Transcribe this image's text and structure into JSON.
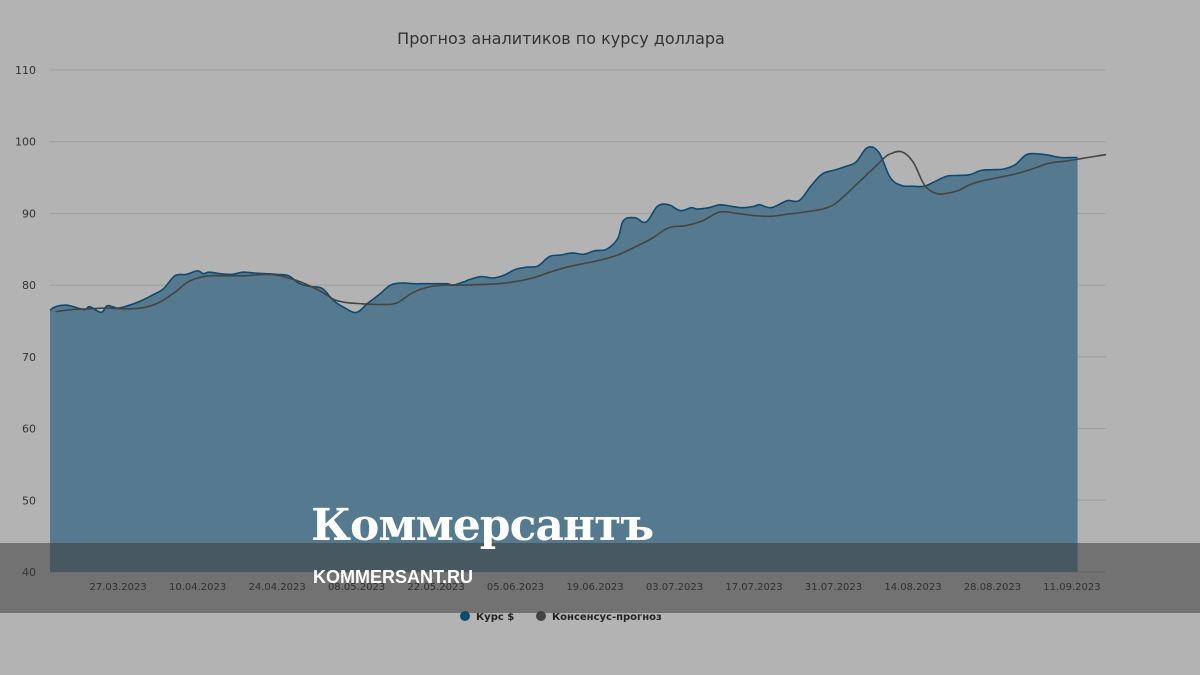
{
  "chart_data": {
    "type": "area",
    "title": "Прогноз аналитиков по курсу доллара",
    "ylim": [
      40,
      110
    ],
    "yticks": [
      40,
      50,
      60,
      70,
      80,
      90,
      100,
      110
    ],
    "grid": true,
    "legend_position": "bottom-center",
    "x_tick_labels": [
      "27.03.2023",
      "10.04.2023",
      "24.04.2023",
      "08.05.2023",
      "22.05.2023",
      "05.06.2023",
      "19.06.2023",
      "03.07.2023",
      "17.07.2023",
      "31.07.2023",
      "14.08.2023",
      "28.08.2023",
      "11.09.2023"
    ],
    "x_range_days": [
      -12,
      174
    ],
    "series": [
      {
        "name": "Курс $",
        "type": "area",
        "color": "#0d4a70",
        "fill": "#557a8f",
        "x": [
          -12,
          -11,
          -9,
          -6,
          -5,
          -3,
          -2,
          -1,
          0,
          2,
          4,
          6,
          8,
          10,
          12,
          14,
          15,
          16,
          18,
          20,
          22,
          24,
          26,
          28,
          30,
          32,
          34,
          36,
          38,
          40,
          42,
          44,
          46,
          48,
          50,
          52,
          54,
          56,
          58,
          59,
          61,
          62,
          64,
          66,
          68,
          70,
          72,
          74,
          76,
          78,
          80,
          82,
          84,
          86,
          88,
          89,
          91,
          93,
          95,
          97,
          99,
          101,
          102,
          104,
          106,
          108,
          110,
          112,
          113,
          115,
          117,
          118,
          120,
          122,
          124,
          126,
          128,
          130,
          132,
          134,
          136,
          138,
          140,
          142,
          144,
          146,
          148,
          150,
          152,
          154,
          156,
          158,
          160,
          162,
          164,
          166,
          168,
          169
        ],
        "values": [
          76.5,
          77.0,
          77.2,
          76.6,
          77.0,
          76.2,
          77.1,
          77.0,
          76.8,
          77.2,
          77.8,
          78.6,
          79.5,
          81.3,
          81.5,
          82.0,
          81.6,
          81.8,
          81.6,
          81.5,
          81.8,
          81.7,
          81.6,
          81.5,
          81.3,
          80.2,
          79.8,
          79.5,
          77.8,
          76.8,
          76.2,
          77.5,
          78.7,
          80.0,
          80.3,
          80.2,
          80.2,
          80.2,
          80.2,
          80.0,
          80.5,
          80.8,
          81.2,
          81.0,
          81.4,
          82.2,
          82.5,
          82.7,
          84.0,
          84.2,
          84.5,
          84.3,
          84.8,
          85.0,
          86.5,
          89.0,
          89.4,
          88.8,
          91.0,
          91.2,
          90.4,
          90.8,
          90.6,
          90.8,
          91.2,
          91.0,
          90.8,
          91.0,
          91.2,
          90.8,
          91.5,
          91.8,
          91.8,
          93.8,
          95.5,
          96.0,
          96.5,
          97.2,
          99.2,
          98.5,
          95.0,
          93.9,
          93.8,
          93.8,
          94.5,
          95.2,
          95.3,
          95.4,
          96.0,
          96.1,
          96.2,
          96.8,
          98.2,
          98.3,
          98.1,
          97.8,
          97.8,
          97.8
        ]
      },
      {
        "name": "Консенсус-прогноз",
        "type": "line",
        "color": "#444444",
        "x": [
          -11,
          -8,
          -5,
          -2,
          1,
          4,
          7,
          10,
          12,
          14,
          16,
          18,
          20,
          22,
          24,
          26,
          28,
          30,
          32,
          34,
          36,
          38,
          40,
          43,
          46,
          49,
          52,
          55,
          58,
          61,
          64,
          67,
          70,
          73,
          76,
          79,
          82,
          85,
          88,
          91,
          94,
          97,
          100,
          103,
          106,
          109,
          112,
          115,
          118,
          121,
          124,
          126,
          128,
          130,
          132,
          134,
          135,
          136,
          138,
          140,
          142,
          144,
          146,
          148,
          150,
          152,
          155,
          158,
          161,
          164,
          167,
          170,
          174
        ],
        "values": [
          76.3,
          76.6,
          76.7,
          76.8,
          76.7,
          76.8,
          77.5,
          79.0,
          80.3,
          81.0,
          81.3,
          81.3,
          81.3,
          81.3,
          81.4,
          81.5,
          81.4,
          81.0,
          80.5,
          79.8,
          79.0,
          78.0,
          77.6,
          77.4,
          77.3,
          77.5,
          79.0,
          79.8,
          80.0,
          80.0,
          80.1,
          80.2,
          80.5,
          81.0,
          81.8,
          82.5,
          83.0,
          83.5,
          84.2,
          85.3,
          86.5,
          88.0,
          88.3,
          89.0,
          90.2,
          90.0,
          89.7,
          89.6,
          89.9,
          90.2,
          90.6,
          91.2,
          92.5,
          94.0,
          95.5,
          97.0,
          97.8,
          98.3,
          98.6,
          97.2,
          94.0,
          92.8,
          92.8,
          93.2,
          94.0,
          94.5,
          95.0,
          95.5,
          96.2,
          97.0,
          97.3,
          97.7,
          98.2
        ]
      }
    ]
  },
  "watermark": {
    "brand": "Коммерсантъ",
    "url": "KOMMERSANT.RU"
  }
}
